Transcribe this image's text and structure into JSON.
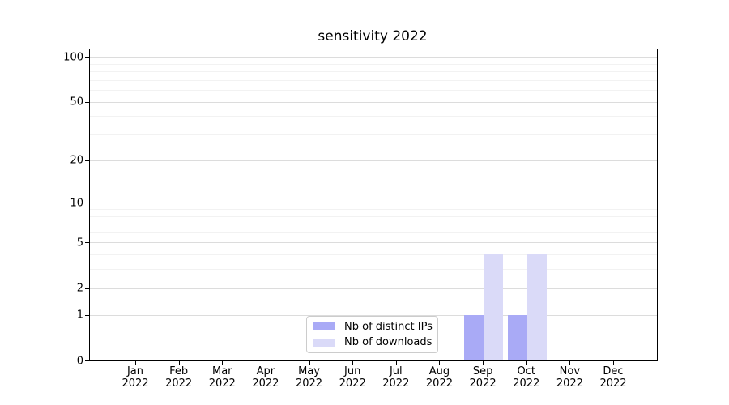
{
  "chart_data": {
    "type": "bar",
    "title": "sensitivity 2022",
    "categories": [
      "Jan",
      "Feb",
      "Mar",
      "Apr",
      "May",
      "Jun",
      "Jul",
      "Aug",
      "Sep",
      "Oct",
      "Nov",
      "Dec"
    ],
    "category_year": "2022",
    "series": [
      {
        "name": "Nb of distinct IPs",
        "color": "#a9aaf6",
        "values": [
          0,
          0,
          0,
          0,
          0,
          0,
          0,
          0,
          1,
          1,
          0,
          0
        ]
      },
      {
        "name": "Nb of downloads",
        "color": "#dadaf8",
        "values": [
          0,
          0,
          0,
          0,
          0,
          0,
          0,
          0,
          4,
          4,
          0,
          0
        ]
      }
    ],
    "xlabel": "",
    "ylabel": "",
    "y_axis": {
      "scale": "log1p",
      "range": [
        0,
        112
      ],
      "ticks_major": [
        0,
        1,
        2,
        5,
        10,
        20,
        50,
        100
      ],
      "ticks_minor": [
        3,
        4,
        6,
        7,
        8,
        9,
        30,
        40,
        60,
        70,
        80,
        90
      ]
    },
    "grid": {
      "major": true,
      "minor": true,
      "major_color": "#dcdcdc",
      "minor_color": "#f2f2f2"
    },
    "legend": {
      "position": "lower center-left",
      "entries": [
        "Nb of distinct IPs",
        "Nb of downloads"
      ]
    }
  }
}
